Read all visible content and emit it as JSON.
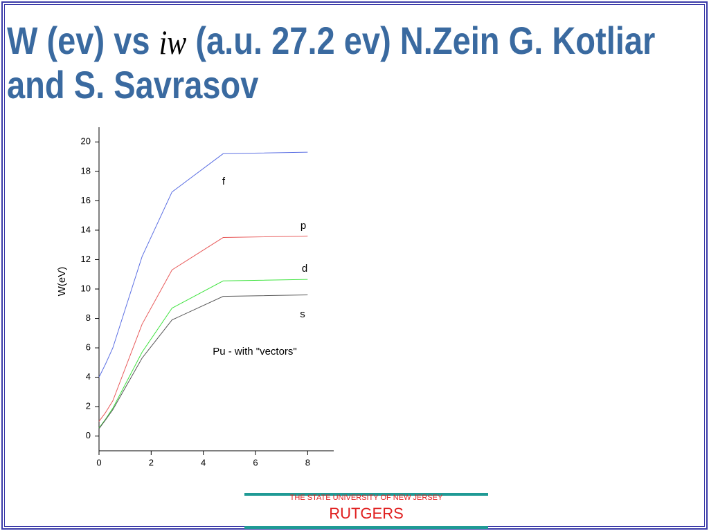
{
  "slide": {
    "title_start": "W (ev) vs",
    "title_symbol": "iw",
    "title_end": "(a.u. 27.2 ev) N.Zein G. Kotliar and S. Savrasov",
    "footer_top": "THE STATE UNIVERSITY OF NEW JERSEY",
    "footer_main": "RUTGERS"
  },
  "chart_data": {
    "type": "line",
    "y_label": "W(eV)",
    "annotation": "Pu - with \"vectors\"",
    "x": [
      0,
      0.25,
      0.53,
      1.65,
      2.8,
      4.76,
      8
    ],
    "series": [
      {
        "name": "f",
        "color": "#5b6fe3",
        "values": [
          4.0,
          4.9,
          6.0,
          12.2,
          16.6,
          19.2,
          19.3
        ]
      },
      {
        "name": "p",
        "color": "#e85a5a",
        "values": [
          1.0,
          1.6,
          2.4,
          7.6,
          11.3,
          13.5,
          13.6
        ]
      },
      {
        "name": "d",
        "color": "#3fe33f",
        "values": [
          0.55,
          1.15,
          1.9,
          5.7,
          8.7,
          10.55,
          10.65
        ]
      },
      {
        "name": "s",
        "color": "#555555",
        "values": [
          0.5,
          1.1,
          1.8,
          5.3,
          7.9,
          9.5,
          9.6
        ]
      }
    ],
    "xlim": [
      0,
      9
    ],
    "ylim": [
      -1,
      21
    ],
    "xticks": [
      0,
      2,
      4,
      6,
      8
    ],
    "yticks": [
      0,
      2,
      4,
      6,
      8,
      10,
      12,
      14,
      16,
      18,
      20
    ]
  }
}
